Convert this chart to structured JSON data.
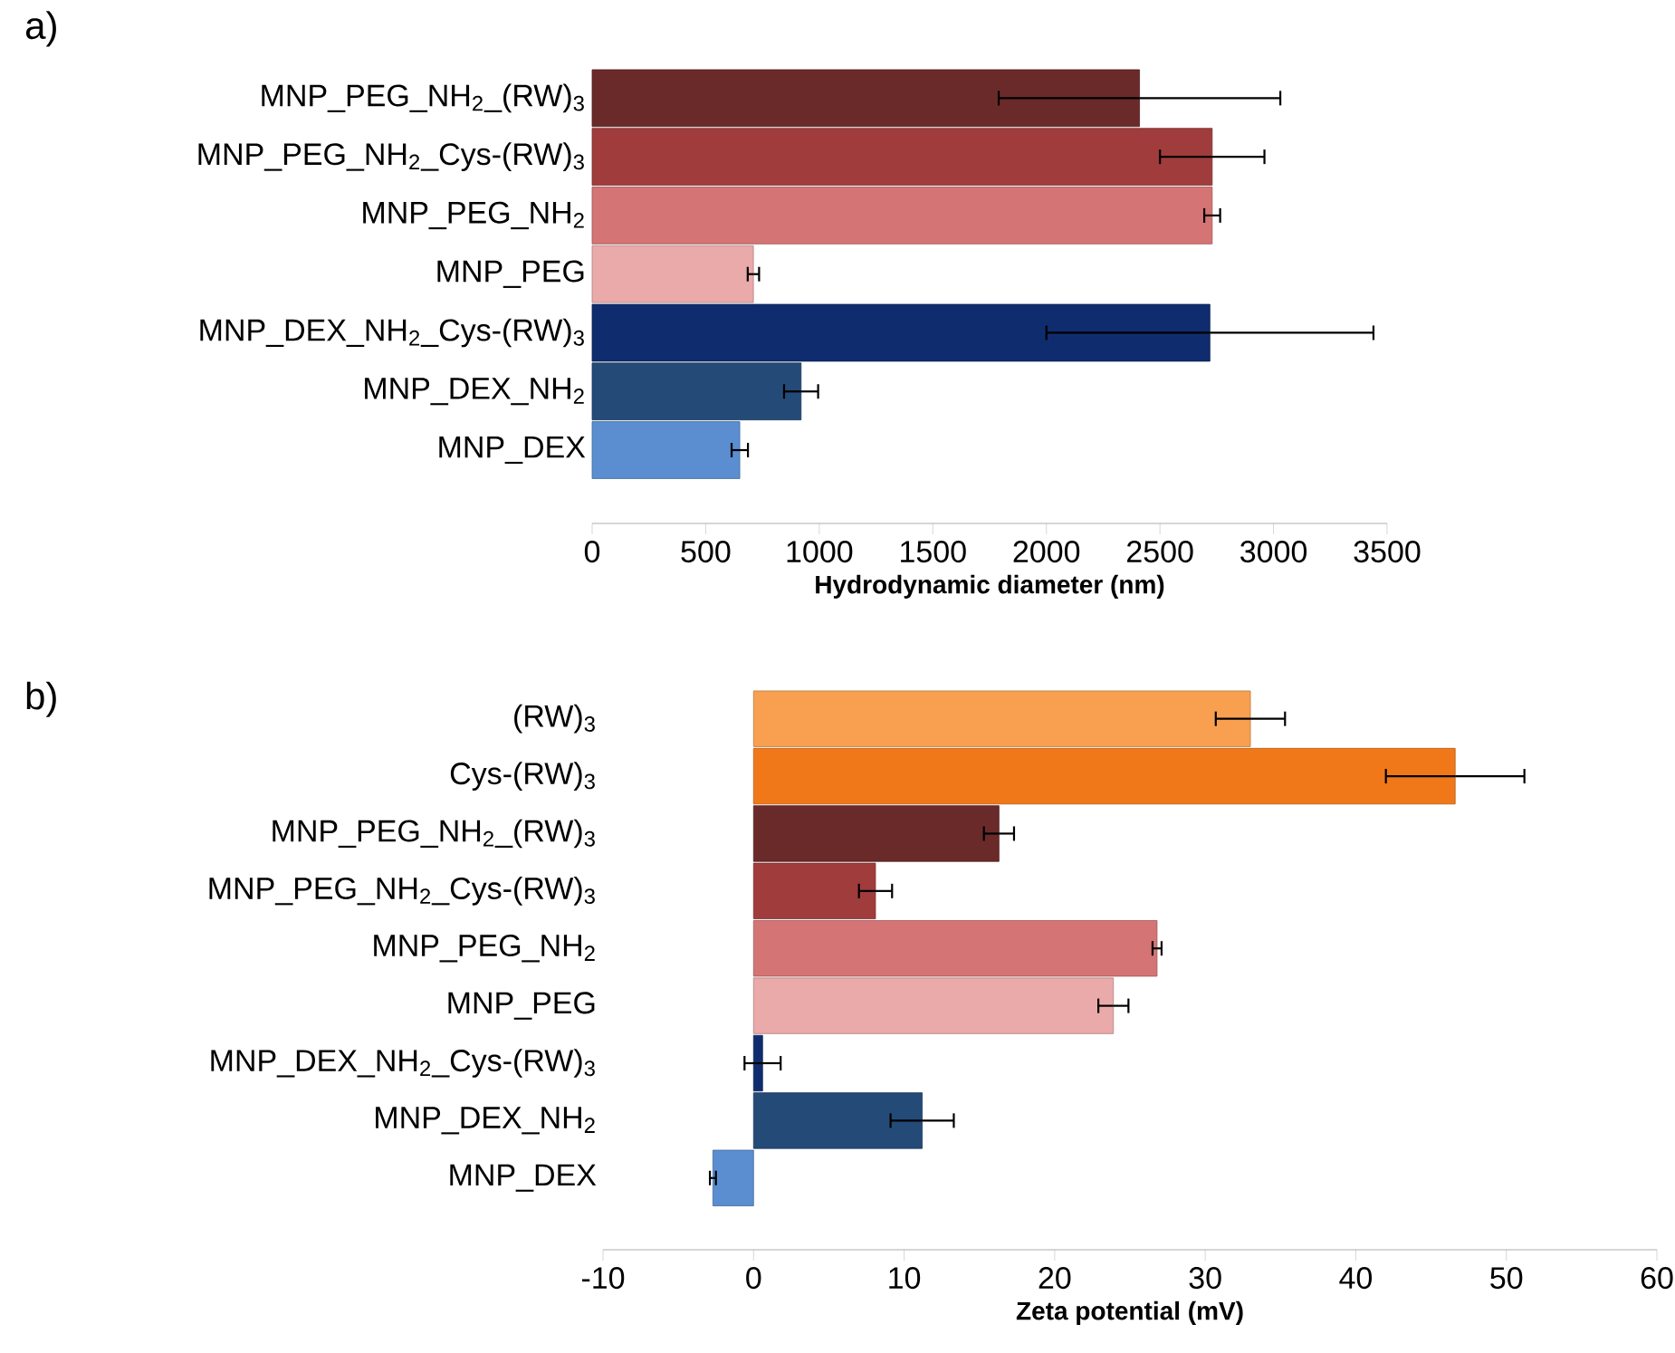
{
  "chart_data": [
    {
      "type": "bar",
      "orientation": "horizontal",
      "title": "a)",
      "xlabel": "Hydrodynamic diameter (nm)",
      "categories": [
        "MNP_PEG_NH$_{2}$_(RW)$_{3}$",
        "MNP_PEG_NH$_{2}$_Cys-(RW)$_{3}$",
        "MNP_PEG_NH$_{2}$",
        "MNP_PEG",
        "MNP_DEX_NH$_{2}$_Cys-(RW)$_{3}$",
        "MNP_DEX_NH$_{2}$",
        "MNP_DEX"
      ],
      "values": [
        2410,
        2730,
        2730,
        710,
        2720,
        920,
        650
      ],
      "errors": [
        620,
        230,
        35,
        25,
        720,
        75,
        36
      ],
      "colors": [
        "#6b2a2a",
        "#a03c3c",
        "#d47474",
        "#eaaaaa",
        "#0f2d6e",
        "#244a78",
        "#5a8ed0"
      ],
      "xlim": [
        0,
        3500
      ],
      "xticks": [
        0,
        500,
        1000,
        1500,
        2000,
        2500,
        3000,
        3500
      ]
    },
    {
      "type": "bar",
      "orientation": "horizontal",
      "title": "b)",
      "xlabel": "Zeta potential (mV)",
      "categories": [
        "(RW)$_{3}$",
        "Cys-(RW)$_{3}$",
        "MNP_PEG_NH$_{2}$_(RW)$_{3}$",
        "MNP_PEG_NH$_{2}$_Cys-(RW)$_{3}$",
        "MNP_PEG_NH$_{2}$",
        "MNP_PEG",
        "MNP_DEX_NH$_{2}$_Cys-(RW)$_{3}$",
        "MNP_DEX_NH$_{2}$",
        "MNP_DEX"
      ],
      "values": [
        33,
        46.6,
        16.3,
        8.1,
        26.8,
        23.9,
        0.6,
        11.2,
        -2.7
      ],
      "errors": [
        2.3,
        4.6,
        1,
        1.1,
        0.3,
        1,
        1.2,
        2.1,
        0.2
      ],
      "colors": [
        "#f8a050",
        "#f07818",
        "#6b2a2a",
        "#a03c3c",
        "#d47474",
        "#eaaaaa",
        "#0f2d6e",
        "#244a78",
        "#5a8ed0"
      ],
      "xlim": [
        -10,
        60
      ],
      "xticks": [
        -10,
        0,
        10,
        20,
        30,
        40,
        50,
        60
      ]
    }
  ]
}
